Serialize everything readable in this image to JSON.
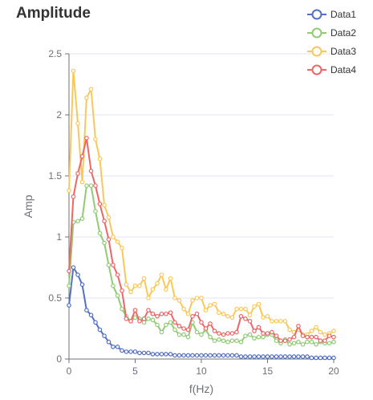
{
  "chart_data": {
    "type": "line",
    "title": "Amplitude",
    "xlabel": "f(Hz)",
    "ylabel": "Amp",
    "xlim": [
      0,
      20
    ],
    "ylim": [
      0,
      2.5
    ],
    "x_ticks": [
      0,
      5,
      10,
      15,
      20
    ],
    "y_ticks": [
      0,
      0.5,
      1,
      1.5,
      2,
      2.5
    ],
    "x_tick_labels": [
      "0",
      "5",
      "10",
      "15",
      "20"
    ],
    "y_tick_labels": [
      "0",
      "0.5",
      "1",
      "1.5",
      "2",
      "2.5"
    ],
    "grid": "horizontal",
    "legend_position": "top-right",
    "series": [
      {
        "name": "Data1",
        "color": "#5470c6",
        "x": [
          0,
          0.33,
          0.67,
          1,
          1.33,
          1.67,
          2,
          2.33,
          2.67,
          3,
          3.33,
          3.67,
          4,
          4.33,
          4.67,
          5,
          5.33,
          5.67,
          6,
          6.33,
          6.67,
          7,
          7.33,
          7.67,
          8,
          8.33,
          8.67,
          9,
          9.33,
          9.67,
          10,
          10.33,
          10.67,
          11,
          11.33,
          11.67,
          12,
          12.33,
          12.67,
          13,
          13.33,
          13.67,
          14,
          14.33,
          14.67,
          15,
          15.33,
          15.67,
          16,
          16.33,
          16.67,
          17,
          17.33,
          17.67,
          18,
          18.33,
          18.67,
          19,
          19.33,
          19.67,
          20
        ],
        "values": [
          0.44,
          0.75,
          0.69,
          0.61,
          0.4,
          0.36,
          0.3,
          0.24,
          0.19,
          0.14,
          0.1,
          0.1,
          0.07,
          0.06,
          0.06,
          0.06,
          0.05,
          0.05,
          0.05,
          0.04,
          0.04,
          0.04,
          0.04,
          0.04,
          0.03,
          0.03,
          0.03,
          0.03,
          0.03,
          0.03,
          0.03,
          0.03,
          0.03,
          0.03,
          0.03,
          0.03,
          0.03,
          0.03,
          0.03,
          0.02,
          0.02,
          0.02,
          0.02,
          0.02,
          0.02,
          0.02,
          0.02,
          0.02,
          0.02,
          0.02,
          0.02,
          0.02,
          0.02,
          0.02,
          0.02,
          0.01,
          0.01,
          0.01,
          0.01,
          0.01,
          0.01
        ]
      },
      {
        "name": "Data2",
        "color": "#91cc75",
        "x": [
          0,
          0.33,
          0.67,
          1,
          1.33,
          1.67,
          2,
          2.33,
          2.67,
          3,
          3.33,
          3.67,
          4,
          4.33,
          4.67,
          5,
          5.33,
          5.67,
          6,
          6.33,
          6.67,
          7,
          7.33,
          7.67,
          8,
          8.33,
          8.67,
          9,
          9.33,
          9.67,
          10,
          10.33,
          10.67,
          11,
          11.33,
          11.67,
          12,
          12.33,
          12.67,
          13,
          13.33,
          13.67,
          14,
          14.33,
          14.67,
          15,
          15.33,
          15.67,
          16,
          16.33,
          16.67,
          17,
          17.33,
          17.67,
          18,
          18.33,
          18.67,
          19,
          19.33,
          19.67,
          20
        ],
        "values": [
          0.6,
          1.12,
          1.13,
          1.15,
          1.42,
          1.42,
          1.21,
          1.03,
          0.95,
          0.77,
          0.6,
          0.52,
          0.41,
          0.35,
          0.31,
          0.34,
          0.33,
          0.3,
          0.33,
          0.32,
          0.28,
          0.22,
          0.28,
          0.3,
          0.24,
          0.2,
          0.2,
          0.18,
          0.3,
          0.22,
          0.2,
          0.24,
          0.18,
          0.15,
          0.16,
          0.15,
          0.14,
          0.15,
          0.15,
          0.14,
          0.19,
          0.2,
          0.17,
          0.18,
          0.18,
          0.2,
          0.2,
          0.15,
          0.13,
          0.16,
          0.12,
          0.13,
          0.14,
          0.12,
          0.14,
          0.14,
          0.12,
          0.14,
          0.13,
          0.13,
          0.14
        ]
      },
      {
        "name": "Data3",
        "color": "#fac858",
        "x": [
          0,
          0.33,
          0.67,
          1,
          1.33,
          1.67,
          2,
          2.33,
          2.67,
          3,
          3.33,
          3.67,
          4,
          4.33,
          4.67,
          5,
          5.33,
          5.67,
          6,
          6.33,
          6.67,
          7,
          7.33,
          7.67,
          8,
          8.33,
          8.67,
          9,
          9.33,
          9.67,
          10,
          10.33,
          10.67,
          11,
          11.33,
          11.67,
          12,
          12.33,
          12.67,
          13,
          13.33,
          13.67,
          14,
          14.33,
          14.67,
          15,
          15.33,
          15.67,
          16,
          16.33,
          16.67,
          17,
          17.33,
          17.67,
          18,
          18.33,
          18.67,
          19,
          19.33,
          19.67,
          20
        ],
        "values": [
          1.38,
          2.36,
          1.93,
          1.45,
          2.14,
          2.21,
          1.8,
          1.64,
          1.26,
          1.16,
          1.0,
          0.96,
          0.91,
          0.61,
          0.55,
          0.6,
          0.6,
          0.66,
          0.5,
          0.57,
          0.62,
          0.69,
          0.57,
          0.66,
          0.5,
          0.48,
          0.41,
          0.37,
          0.48,
          0.5,
          0.5,
          0.4,
          0.44,
          0.45,
          0.38,
          0.37,
          0.35,
          0.34,
          0.41,
          0.41,
          0.41,
          0.36,
          0.43,
          0.45,
          0.34,
          0.35,
          0.31,
          0.31,
          0.31,
          0.31,
          0.24,
          0.22,
          0.24,
          0.2,
          0.2,
          0.23,
          0.26,
          0.22,
          0.2,
          0.21,
          0.23
        ]
      },
      {
        "name": "Data4",
        "color": "#ee6666",
        "x": [
          0,
          0.33,
          0.67,
          1,
          1.33,
          1.67,
          2,
          2.33,
          2.67,
          3,
          3.33,
          3.67,
          4,
          4.33,
          4.67,
          5,
          5.33,
          5.67,
          6,
          6.33,
          6.67,
          7,
          7.33,
          7.67,
          8,
          8.33,
          8.67,
          9,
          9.33,
          9.67,
          10,
          10.33,
          10.67,
          11,
          11.33,
          11.67,
          12,
          12.33,
          12.67,
          13,
          13.33,
          13.67,
          14,
          14.33,
          14.67,
          15,
          15.33,
          15.67,
          16,
          16.33,
          16.67,
          17,
          17.33,
          17.67,
          18,
          18.33,
          18.67,
          19,
          19.33,
          19.67,
          20
        ],
        "values": [
          0.72,
          1.33,
          1.52,
          1.66,
          1.81,
          1.54,
          1.42,
          1.27,
          1.13,
          0.98,
          0.77,
          0.69,
          0.56,
          0.33,
          0.31,
          0.4,
          0.31,
          0.33,
          0.4,
          0.37,
          0.35,
          0.37,
          0.37,
          0.38,
          0.3,
          0.27,
          0.25,
          0.24,
          0.35,
          0.37,
          0.3,
          0.25,
          0.29,
          0.23,
          0.21,
          0.2,
          0.21,
          0.21,
          0.22,
          0.35,
          0.33,
          0.31,
          0.23,
          0.26,
          0.21,
          0.21,
          0.22,
          0.19,
          0.15,
          0.15,
          0.16,
          0.18,
          0.27,
          0.19,
          0.18,
          0.18,
          0.18,
          0.15,
          0.15,
          0.19,
          0.18
        ]
      }
    ]
  }
}
